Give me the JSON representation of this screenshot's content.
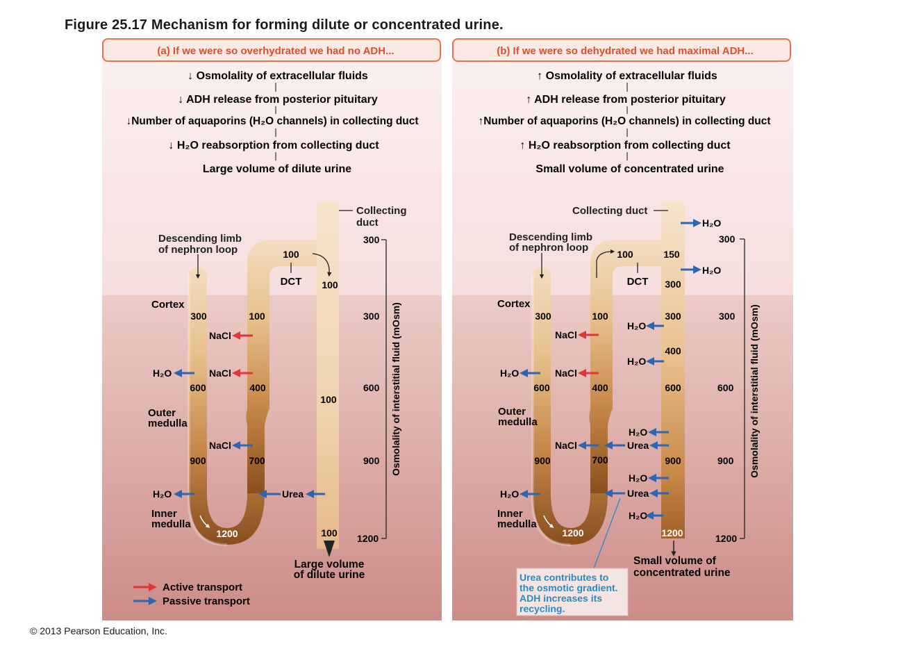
{
  "title": "Figure 25.17  Mechanism for forming dilute or concentrated urine.",
  "copyright": "© 2013 Pearson Education, Inc.",
  "panel_a": {
    "header": "(a) If we were so overhydrated we had no ADH...",
    "steps": [
      "Osmolality of extracellular fluids",
      "ADH release from posterior pituitary",
      "Number of aquaporins (H₂O channels) in collecting duct",
      "H₂O reabsorption from collecting duct",
      "Large volume of dilute urine"
    ],
    "step_arrows": "down",
    "labels": {
      "descending": "Descending limb\nof nephron loop",
      "collecting": "Collecting\nduct",
      "dct": "DCT",
      "cortex": "Cortex",
      "outer": "Outer\nmedulla",
      "inner": "Inner\nmedulla",
      "urine": "Large volume\nof dilute urine",
      "axis": "Osmolality of interstitial fluid (mOsm)"
    },
    "descending_values": [
      "300",
      "600",
      "900"
    ],
    "ascending_values": [
      "100",
      "400",
      "700"
    ],
    "dct_values": [
      "100",
      "100"
    ],
    "duct_values": [
      "100",
      "100"
    ],
    "duct_bottom": "100",
    "loop_bottom": "1200",
    "flux": {
      "h2o": "H₂O",
      "nacl": "NaCl",
      "urea": "Urea"
    },
    "axis_ticks": [
      "300",
      "300",
      "600",
      "900",
      "1200"
    ]
  },
  "panel_b": {
    "header": "(b) If we were so dehydrated we had maximal ADH...",
    "steps": [
      "Osmolality of extracellular fluids",
      "ADH release from posterior pituitary",
      "Number of aquaporins (H₂O channels) in collecting duct",
      "H₂O reabsorption from collecting duct",
      "Small volume of concentrated urine"
    ],
    "step_arrows": "up",
    "labels": {
      "descending": "Descending limb\nof nephron loop",
      "collecting": "Collecting duct",
      "dct": "DCT",
      "cortex": "Cortex",
      "outer": "Outer\nmedulla",
      "inner": "Inner\nmedulla",
      "urine": "Small volume of\nconcentrated urine",
      "axis": "Osmolality of interstitial fluid (mOsm)",
      "note": "Urea contributes to\nthe osmotic gradient.\nADH increases its\nrecycling."
    },
    "descending_values": [
      "300",
      "600",
      "900"
    ],
    "ascending_values": [
      "100",
      "400",
      "700"
    ],
    "dct_values": [
      "100",
      "150"
    ],
    "duct_values": [
      "300",
      "300",
      "400",
      "600",
      "900"
    ],
    "duct_bottom": "1200",
    "loop_bottom": "1200",
    "axis_ticks": [
      "300",
      "300",
      "600",
      "900",
      "1200"
    ]
  },
  "legend": {
    "active": "Active transport",
    "passive": "Passive transport"
  },
  "colors": {
    "active": "#e0353a",
    "passive": "#2c66b0",
    "header_border": "#e4734f",
    "header_text": "#d9502b",
    "note": "#2b8ac1"
  }
}
